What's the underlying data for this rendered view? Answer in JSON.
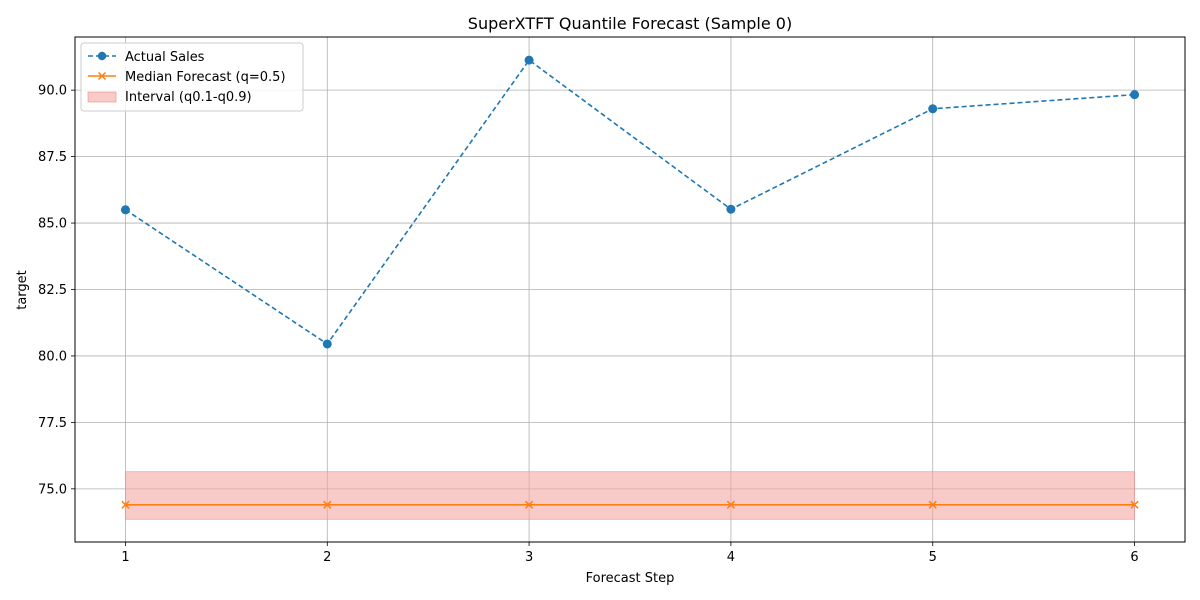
{
  "chart_data": {
    "type": "line",
    "title": "SuperXTFT Quantile Forecast (Sample 0)",
    "xlabel": "Forecast Step",
    "ylabel": "target",
    "x": [
      1,
      2,
      3,
      4,
      5,
      6
    ],
    "xlim": [
      0.75,
      6.25
    ],
    "ylim": [
      73.0,
      92.0
    ],
    "yticks": [
      75.0,
      77.5,
      80.0,
      82.5,
      85.0,
      87.5,
      90.0
    ],
    "ytick_labels": [
      "75.0",
      "77.5",
      "80.0",
      "82.5",
      "85.0",
      "87.5",
      "90.0"
    ],
    "xticks": [
      1,
      2,
      3,
      4,
      5,
      6
    ],
    "xtick_labels": [
      "1",
      "2",
      "3",
      "4",
      "5",
      "6"
    ],
    "grid": true,
    "legend_position": "top-left",
    "series": [
      {
        "name": "Actual Sales",
        "kind": "line",
        "style": "dashed",
        "marker": "circle",
        "color": "#1f77b4",
        "values": [
          85.5,
          80.45,
          91.13,
          85.52,
          89.3,
          89.83
        ]
      },
      {
        "name": "Median Forecast (q=0.5)",
        "kind": "line",
        "style": "solid",
        "marker": "x",
        "color": "#ff7f0e",
        "values": [
          74.4,
          74.4,
          74.4,
          74.4,
          74.4,
          74.4
        ]
      },
      {
        "name": "Interval (q0.1-q0.9)",
        "kind": "band",
        "color": "#f4a7a3",
        "lower": [
          73.85,
          73.85,
          73.85,
          73.85,
          73.85,
          73.85
        ],
        "upper": [
          75.65,
          75.65,
          75.65,
          75.65,
          75.65,
          75.65
        ]
      }
    ]
  }
}
